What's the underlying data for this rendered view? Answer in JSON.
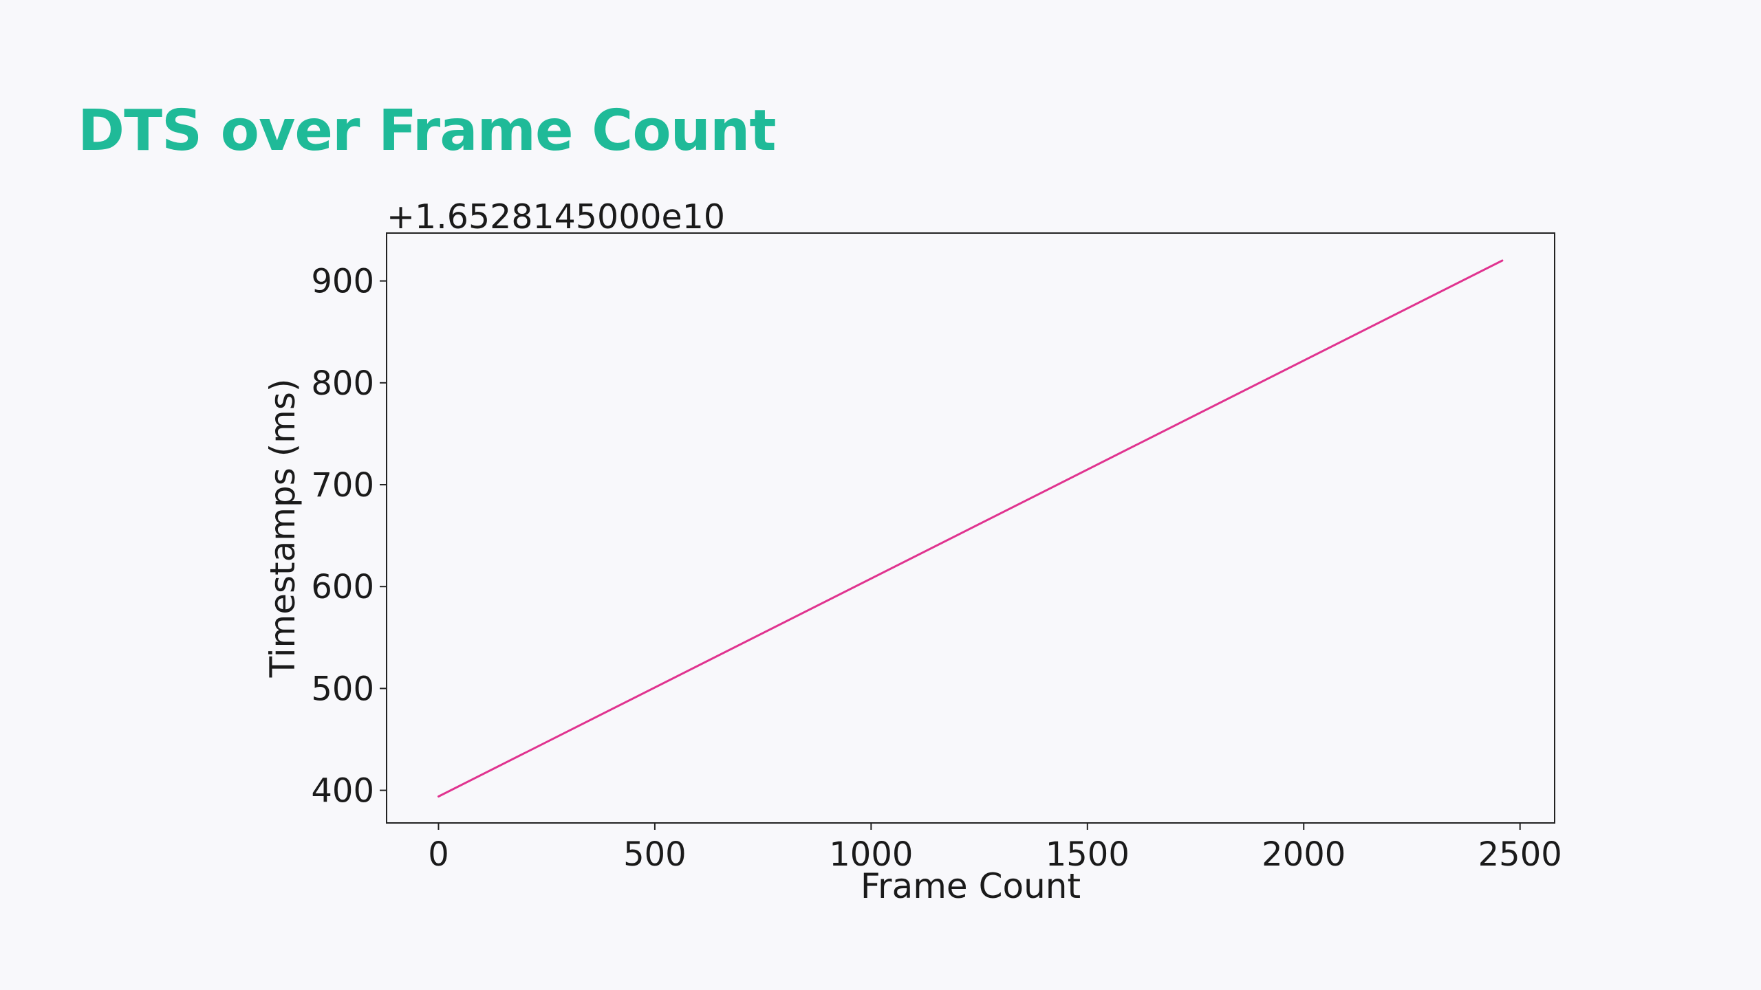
{
  "slide": {
    "title": "DTS over Frame Count"
  },
  "chart_data": {
    "type": "line",
    "title": "",
    "xlabel": "Frame Count",
    "ylabel": "Timestamps (ms)",
    "y_offset_label": "+1.6528145000e10",
    "xlim": [
      -120,
      2580
    ],
    "ylim": [
      368,
      947
    ],
    "x_ticks": [
      0,
      500,
      1000,
      1500,
      2000,
      2500
    ],
    "y_ticks": [
      400,
      500,
      600,
      700,
      800,
      900
    ],
    "grid": false,
    "legend": "none",
    "series": [
      {
        "color": "#e0338f",
        "x": [
          0,
          2459
        ],
        "y": [
          394,
          920
        ]
      }
    ]
  }
}
